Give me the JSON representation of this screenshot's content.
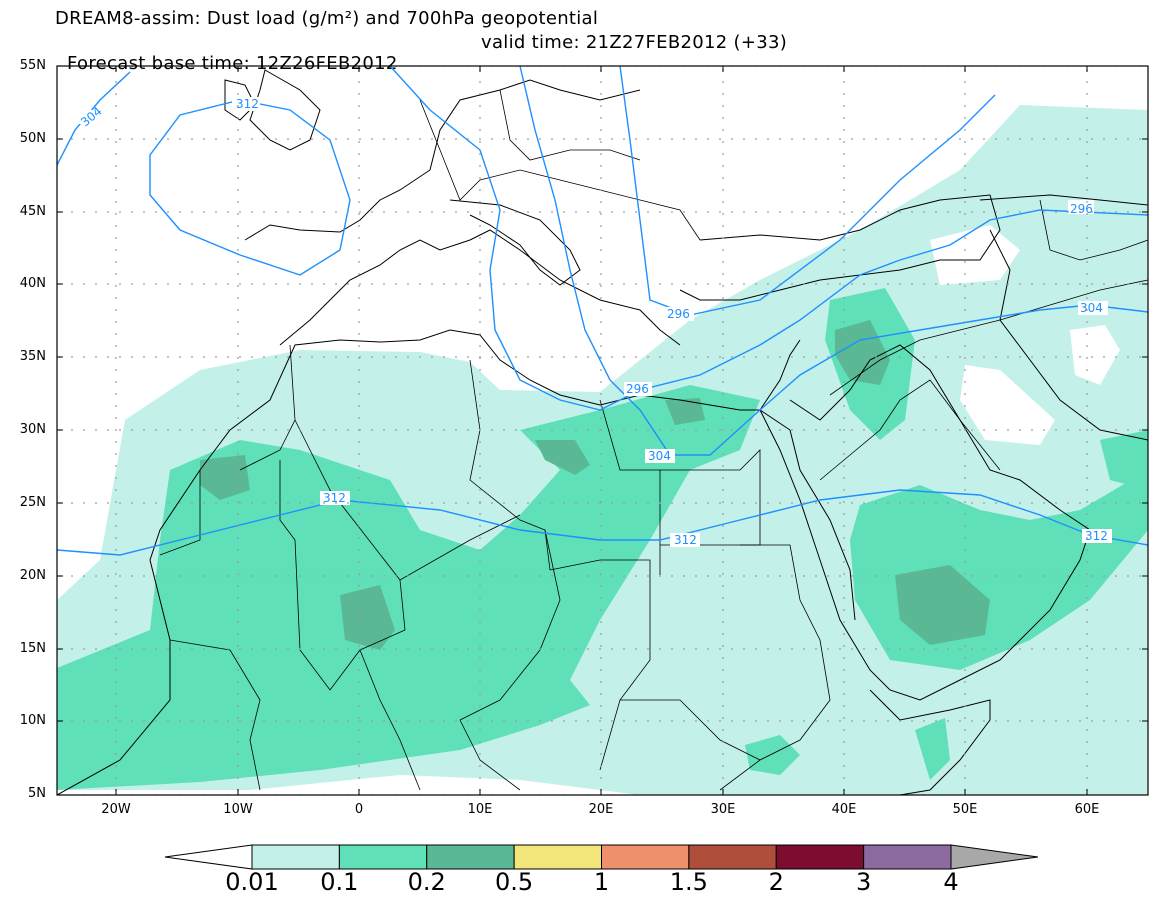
{
  "title": {
    "line1": "DREAM8-assim: Dust load (g/m²) and 700hPa geopotential",
    "line2": "Forecast base time: 12Z26FEB2012",
    "valid": "valid time: 21Z27FEB2012 (+33)"
  },
  "axes": {
    "lat_labels": [
      "55N",
      "50N",
      "45N",
      "40N",
      "35N",
      "30N",
      "25N",
      "20N",
      "15N",
      "10N",
      "5N"
    ],
    "lon_labels": [
      "20W",
      "10W",
      "0",
      "10E",
      "20E",
      "30E",
      "40E",
      "50E",
      "60E"
    ]
  },
  "contours": {
    "labels": [
      "304",
      "312",
      "296",
      "296",
      "304",
      "304",
      "312",
      "312",
      "296"
    ],
    "color": "#1e90ff"
  },
  "colorbar": {
    "labels": [
      "0.01",
      "0.1",
      "0.2",
      "0.5",
      "1",
      "1.5",
      "2",
      "3",
      "4"
    ],
    "colors": [
      "#c4f0ea",
      "#5fe0b8",
      "#5ab994",
      "#f2e57a",
      "#ee906a",
      "#b04e3c",
      "#7d0d2e",
      "#8c6aa0",
      "#a8a8a8"
    ]
  },
  "legend": {
    "shading": [
      "#c4f0ea",
      "#5fe0b8",
      "#5ab994"
    ]
  }
}
